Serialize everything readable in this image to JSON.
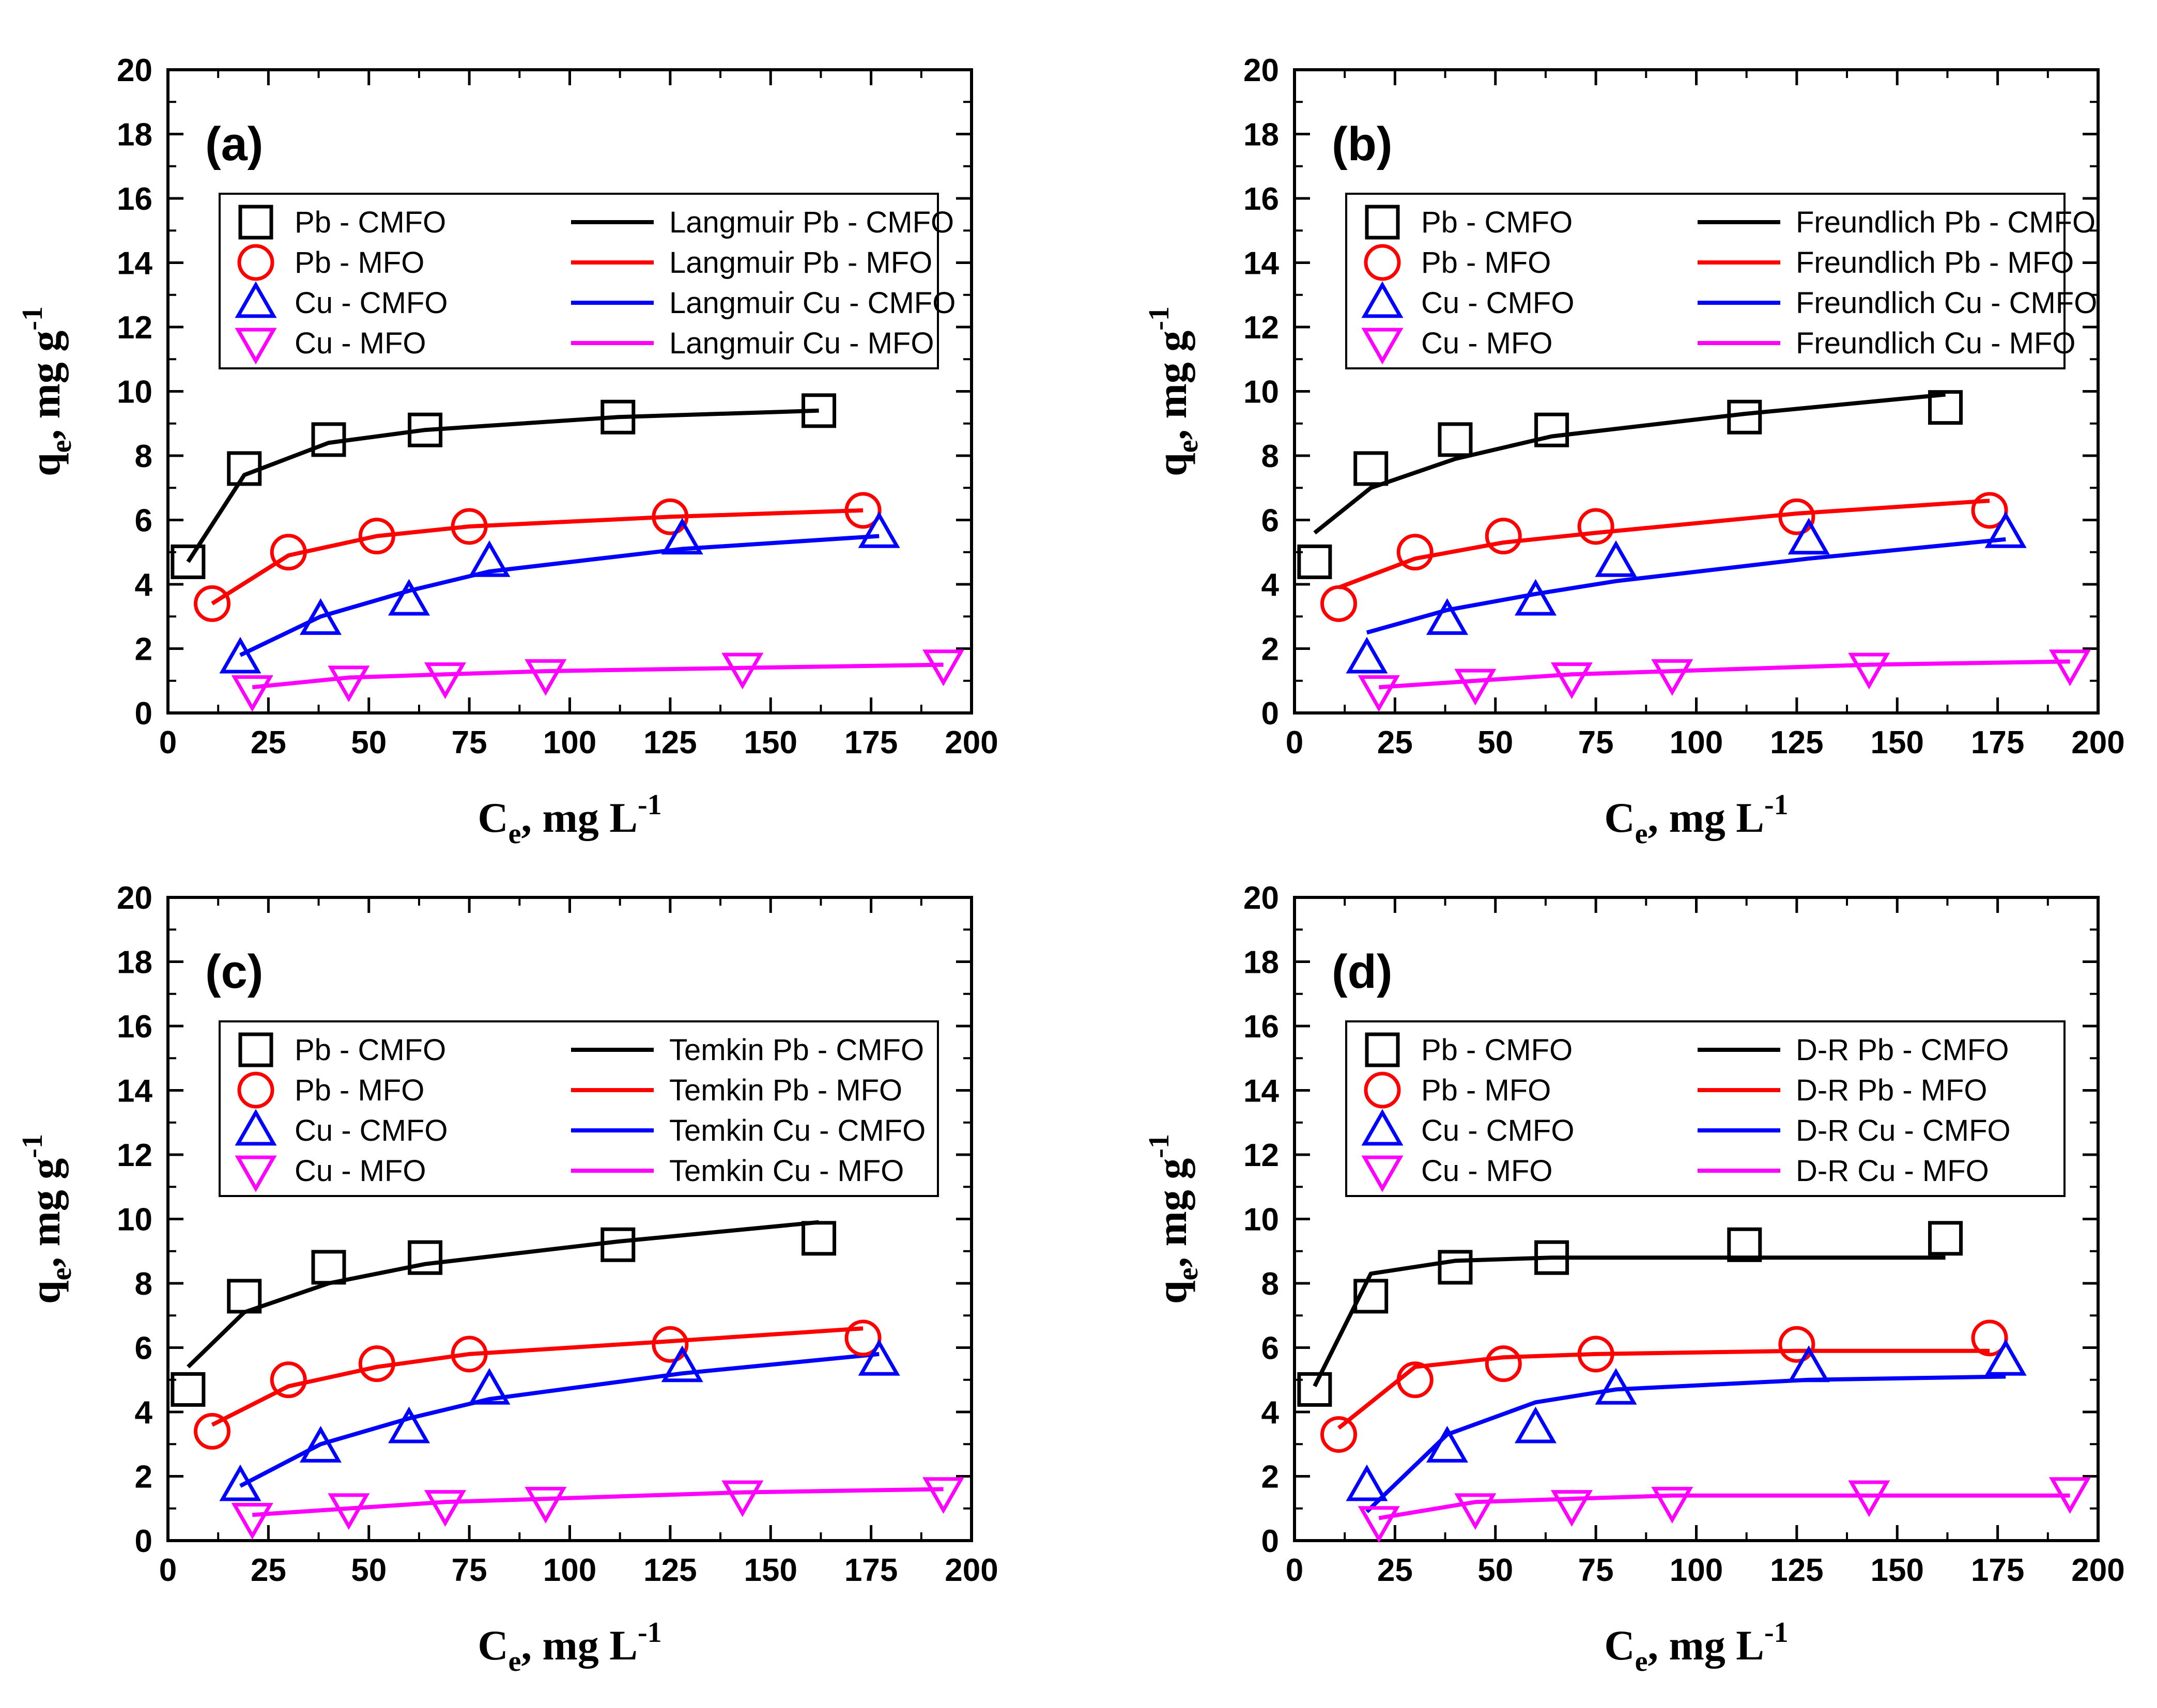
{
  "chart_data": [
    {
      "type": "scatter",
      "panel_label": "(a)",
      "model": "Langmuir",
      "xlabel": "C",
      "xlabel_sub": "e",
      "xlabel_unit": ", mg L",
      "xlabel_sup": "-1",
      "ylabel": "q",
      "ylabel_sub": "e",
      "ylabel_unit": ", mg g",
      "ylabel_sup": "-1",
      "xlim": [
        0,
        200
      ],
      "ylim": [
        0,
        20
      ],
      "xticks": [
        "0",
        "25",
        "50",
        "75",
        "100",
        "125",
        "150",
        "175",
        "200"
      ],
      "yticks": [
        "0",
        "2",
        "4",
        "6",
        "8",
        "10",
        "12",
        "14",
        "16",
        "18",
        "20"
      ],
      "legend_position": "upper-center",
      "series": [
        {
          "name": "Pb - CMFO",
          "marker": "square",
          "color": "#000000",
          "x": [
            5,
            19,
            40,
            64,
            112,
            162
          ],
          "y": [
            4.7,
            7.6,
            8.5,
            8.8,
            9.2,
            9.4
          ]
        },
        {
          "name": "Pb - MFO",
          "marker": "circle",
          "color": "#ff0000",
          "x": [
            11,
            30,
            52,
            75,
            125,
            173
          ],
          "y": [
            3.4,
            5.0,
            5.5,
            5.8,
            6.1,
            6.3
          ]
        },
        {
          "name": "Cu - CMFO",
          "marker": "triangle-up",
          "color": "#0000ff",
          "x": [
            18,
            38,
            60,
            80,
            128,
            177
          ],
          "y": [
            1.7,
            2.9,
            3.5,
            4.7,
            5.4,
            5.6
          ]
        },
        {
          "name": "Cu - MFO",
          "marker": "triangle-down",
          "color": "#ff00ff",
          "x": [
            21,
            45,
            69,
            94,
            143,
            193
          ],
          "y": [
            0.7,
            1.0,
            1.1,
            1.2,
            1.4,
            1.5
          ]
        }
      ],
      "fits": [
        {
          "name": "Langmuir Pb - CMFO",
          "color": "#000000",
          "x": [
            5,
            19,
            40,
            64,
            112,
            162
          ],
          "y": [
            4.7,
            7.4,
            8.4,
            8.8,
            9.2,
            9.4
          ]
        },
        {
          "name": "Langmuir Pb - MFO",
          "color": "#ff0000",
          "x": [
            11,
            30,
            52,
            75,
            125,
            173
          ],
          "y": [
            3.4,
            4.9,
            5.5,
            5.8,
            6.1,
            6.3
          ]
        },
        {
          "name": "Langmuir Cu - CMFO",
          "color": "#0000ff",
          "x": [
            18,
            38,
            60,
            80,
            128,
            177
          ],
          "y": [
            1.8,
            3.0,
            3.8,
            4.4,
            5.1,
            5.5
          ]
        },
        {
          "name": "Langmuir Cu - MFO",
          "color": "#ff00ff",
          "x": [
            21,
            45,
            69,
            94,
            143,
            193
          ],
          "y": [
            0.8,
            1.1,
            1.2,
            1.3,
            1.4,
            1.5
          ]
        }
      ]
    },
    {
      "type": "scatter",
      "panel_label": "(b)",
      "model": "Freundlich",
      "xlabel": "C",
      "xlabel_sub": "e",
      "xlabel_unit": ", mg L",
      "xlabel_sup": "-1",
      "ylabel": "q",
      "ylabel_sub": "e",
      "ylabel_unit": ", mg g",
      "ylabel_sup": "-1",
      "xlim": [
        0,
        200
      ],
      "ylim": [
        0,
        20
      ],
      "xticks": [
        "0",
        "25",
        "50",
        "75",
        "100",
        "125",
        "150",
        "175",
        "200"
      ],
      "yticks": [
        "0",
        "2",
        "4",
        "6",
        "8",
        "10",
        "12",
        "14",
        "16",
        "18",
        "20"
      ],
      "legend_position": "upper-center",
      "series": [
        {
          "name": "Pb - CMFO",
          "marker": "square",
          "color": "#000000",
          "x": [
            5,
            19,
            40,
            64,
            112,
            162
          ],
          "y": [
            4.7,
            7.6,
            8.5,
            8.8,
            9.2,
            9.5
          ]
        },
        {
          "name": "Pb - MFO",
          "marker": "circle",
          "color": "#ff0000",
          "x": [
            11,
            30,
            52,
            75,
            125,
            173
          ],
          "y": [
            3.4,
            5.0,
            5.5,
            5.8,
            6.1,
            6.3
          ]
        },
        {
          "name": "Cu - CMFO",
          "marker": "triangle-up",
          "color": "#0000ff",
          "x": [
            18,
            38,
            60,
            80,
            128,
            177
          ],
          "y": [
            1.7,
            2.9,
            3.5,
            4.7,
            5.4,
            5.6
          ]
        },
        {
          "name": "Cu - MFO",
          "marker": "triangle-down",
          "color": "#ff00ff",
          "x": [
            21,
            45,
            69,
            94,
            143,
            193
          ],
          "y": [
            0.7,
            0.9,
            1.1,
            1.2,
            1.4,
            1.5
          ]
        }
      ],
      "fits": [
        {
          "name": "Freundlich Pb - CMFO",
          "color": "#000000",
          "x": [
            5,
            19,
            40,
            64,
            112,
            162
          ],
          "y": [
            5.6,
            7.0,
            7.9,
            8.6,
            9.3,
            9.9
          ]
        },
        {
          "name": "Freundlich Pb - MFO",
          "color": "#ff0000",
          "x": [
            11,
            30,
            52,
            75,
            125,
            173
          ],
          "y": [
            3.9,
            4.8,
            5.3,
            5.6,
            6.2,
            6.6
          ]
        },
        {
          "name": "Freundlich Cu - CMFO",
          "color": "#0000ff",
          "x": [
            18,
            38,
            60,
            80,
            128,
            177
          ],
          "y": [
            2.5,
            3.2,
            3.7,
            4.1,
            4.8,
            5.4
          ]
        },
        {
          "name": "Freundlich Cu - MFO",
          "color": "#ff00ff",
          "x": [
            21,
            45,
            69,
            94,
            143,
            193
          ],
          "y": [
            0.8,
            1.0,
            1.2,
            1.3,
            1.5,
            1.6
          ]
        }
      ]
    },
    {
      "type": "scatter",
      "panel_label": "(c)",
      "model": "Temkin",
      "xlabel": "C",
      "xlabel_sub": "e",
      "xlabel_unit": ", mg L",
      "xlabel_sup": "-1",
      "ylabel": "q",
      "ylabel_sub": "e",
      "ylabel_unit": ", mg g",
      "ylabel_sup": "-1",
      "xlim": [
        0,
        200
      ],
      "ylim": [
        0,
        20
      ],
      "xticks": [
        "0",
        "25",
        "50",
        "75",
        "100",
        "125",
        "150",
        "175",
        "200"
      ],
      "yticks": [
        "0",
        "2",
        "4",
        "6",
        "8",
        "10",
        "12",
        "14",
        "16",
        "18",
        "20"
      ],
      "legend_position": "upper-center",
      "series": [
        {
          "name": "Pb - CMFO",
          "marker": "square",
          "color": "#000000",
          "x": [
            5,
            19,
            40,
            64,
            112,
            162
          ],
          "y": [
            4.7,
            7.6,
            8.5,
            8.8,
            9.2,
            9.4
          ]
        },
        {
          "name": "Pb - MFO",
          "marker": "circle",
          "color": "#ff0000",
          "x": [
            11,
            30,
            52,
            75,
            125,
            173
          ],
          "y": [
            3.4,
            5.0,
            5.5,
            5.8,
            6.1,
            6.3
          ]
        },
        {
          "name": "Cu - CMFO",
          "marker": "triangle-up",
          "color": "#0000ff",
          "x": [
            18,
            38,
            60,
            80,
            128,
            177
          ],
          "y": [
            1.7,
            2.9,
            3.5,
            4.7,
            5.4,
            5.6
          ]
        },
        {
          "name": "Cu - MFO",
          "marker": "triangle-down",
          "color": "#ff00ff",
          "x": [
            21,
            45,
            69,
            94,
            143,
            193
          ],
          "y": [
            0.7,
            1.0,
            1.1,
            1.2,
            1.4,
            1.5
          ]
        }
      ],
      "fits": [
        {
          "name": "Temkin Pb - CMFO",
          "color": "#000000",
          "x": [
            5,
            19,
            40,
            64,
            112,
            162
          ],
          "y": [
            5.4,
            7.1,
            8.0,
            8.6,
            9.3,
            9.9
          ]
        },
        {
          "name": "Temkin Pb - MFO",
          "color": "#ff0000",
          "x": [
            11,
            30,
            52,
            75,
            125,
            173
          ],
          "y": [
            3.6,
            4.8,
            5.4,
            5.8,
            6.2,
            6.6
          ]
        },
        {
          "name": "Temkin Cu - CMFO",
          "color": "#0000ff",
          "x": [
            18,
            38,
            60,
            80,
            128,
            177
          ],
          "y": [
            1.7,
            3.0,
            3.8,
            4.4,
            5.2,
            5.8
          ]
        },
        {
          "name": "Temkin Cu - MFO",
          "color": "#ff00ff",
          "x": [
            21,
            45,
            69,
            94,
            143,
            193
          ],
          "y": [
            0.8,
            1.0,
            1.2,
            1.3,
            1.5,
            1.6
          ]
        }
      ]
    },
    {
      "type": "scatter",
      "panel_label": "(d)",
      "model": "D-R",
      "xlabel": "C",
      "xlabel_sub": "e",
      "xlabel_unit": ", mg L",
      "xlabel_sup": "-1",
      "ylabel": "q",
      "ylabel_sub": "e",
      "ylabel_unit": ", mg g",
      "ylabel_sup": "-1",
      "xlim": [
        0,
        200
      ],
      "ylim": [
        0,
        20
      ],
      "xticks": [
        "0",
        "25",
        "50",
        "75",
        "100",
        "125",
        "150",
        "175",
        "200"
      ],
      "yticks": [
        "0",
        "2",
        "4",
        "6",
        "8",
        "10",
        "12",
        "14",
        "16",
        "18",
        "20"
      ],
      "legend_position": "upper-center",
      "series": [
        {
          "name": "Pb - CMFO",
          "marker": "square",
          "color": "#000000",
          "x": [
            5,
            19,
            40,
            64,
            112,
            162
          ],
          "y": [
            4.7,
            7.6,
            8.5,
            8.8,
            9.2,
            9.4
          ]
        },
        {
          "name": "Pb - MFO",
          "marker": "circle",
          "color": "#ff0000",
          "x": [
            11,
            30,
            52,
            75,
            125,
            173
          ],
          "y": [
            3.3,
            5.0,
            5.5,
            5.8,
            6.1,
            6.3
          ]
        },
        {
          "name": "Cu - CMFO",
          "marker": "triangle-up",
          "color": "#0000ff",
          "x": [
            18,
            38,
            60,
            80,
            128,
            177
          ],
          "y": [
            1.7,
            2.9,
            3.5,
            4.7,
            5.4,
            5.6
          ]
        },
        {
          "name": "Cu - MFO",
          "marker": "triangle-down",
          "color": "#ff00ff",
          "x": [
            21,
            45,
            69,
            94,
            143,
            193
          ],
          "y": [
            0.6,
            1.0,
            1.1,
            1.2,
            1.4,
            1.5
          ]
        }
      ],
      "fits": [
        {
          "name": "D-R Pb - CMFO",
          "color": "#000000",
          "x": [
            5,
            19,
            40,
            64,
            112,
            162
          ],
          "y": [
            4.8,
            8.3,
            8.7,
            8.8,
            8.8,
            8.8
          ]
        },
        {
          "name": "D-R Pb - MFO",
          "color": "#ff0000",
          "x": [
            11,
            30,
            52,
            75,
            125,
            173
          ],
          "y": [
            3.5,
            5.4,
            5.7,
            5.8,
            5.9,
            5.9
          ]
        },
        {
          "name": "D-R Cu - CMFO",
          "color": "#0000ff",
          "x": [
            18,
            38,
            60,
            80,
            128,
            177
          ],
          "y": [
            0.9,
            3.3,
            4.3,
            4.7,
            5.0,
            5.1
          ]
        },
        {
          "name": "D-R Cu - MFO",
          "color": "#ff00ff",
          "x": [
            21,
            45,
            69,
            94,
            143,
            193
          ],
          "y": [
            0.7,
            1.2,
            1.3,
            1.4,
            1.4,
            1.4
          ]
        }
      ]
    }
  ]
}
